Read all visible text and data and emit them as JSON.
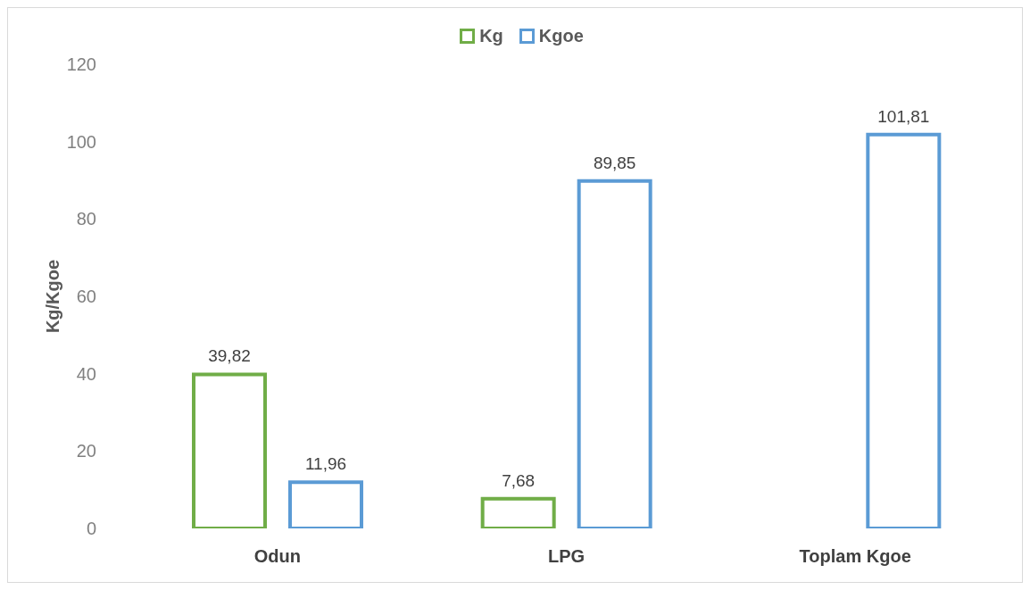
{
  "chart_data": {
    "type": "bar",
    "ylabel": "Kg/Kgoe",
    "categories": [
      "Odun",
      "LPG",
      "Toplam Kgoe"
    ],
    "series": [
      {
        "name": "Kg",
        "color": "#70ad47",
        "values": [
          39.82,
          7.68,
          null
        ],
        "value_labels": [
          "39,82",
          "7,68",
          null
        ]
      },
      {
        "name": "Kgoe",
        "color": "#5b9bd5",
        "values": [
          11.96,
          89.85,
          101.81
        ],
        "value_labels": [
          "11,96",
          "89,85",
          "101,81"
        ]
      }
    ],
    "ylim": [
      0,
      120
    ],
    "yticks": [
      0,
      20,
      40,
      60,
      80,
      100,
      120
    ],
    "grid": false,
    "legend": "top"
  }
}
